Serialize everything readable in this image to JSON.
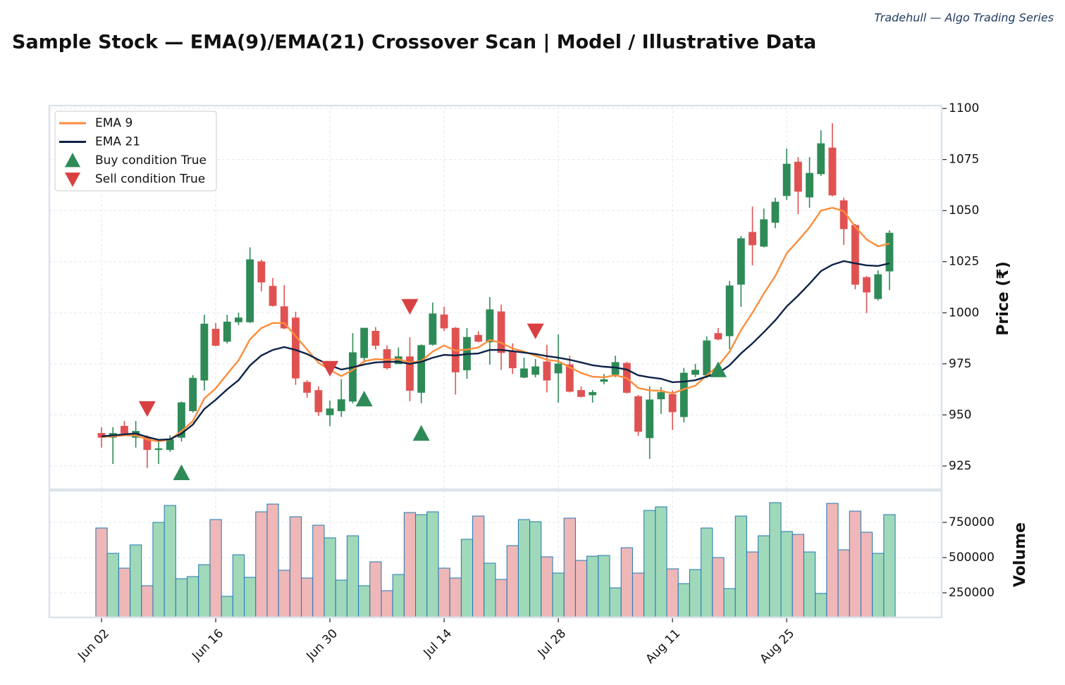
{
  "chart_data": [
    {
      "type": "candlestick",
      "title": "Sample Stock — EMA(9)/EMA(21) Crossover Scan  |  Model / Illustrative Data",
      "source": "Tradehull — Algo Trading Series",
      "ylabel": "Price (₹)",
      "xlim": [
        -4.57,
        73.57
      ],
      "xticks": [
        {
          "value": 0,
          "label": "Jun 02"
        },
        {
          "value": 10,
          "label": "Jun 16"
        },
        {
          "value": 20,
          "label": "Jun 30"
        },
        {
          "value": 30,
          "label": "Jul 14"
        },
        {
          "value": 40,
          "label": "Jul 28"
        },
        {
          "value": 50,
          "label": "Aug 11"
        },
        {
          "value": 60,
          "label": "Aug 25"
        }
      ],
      "ylim": [
        913.6,
        1101.4
      ],
      "yticks": [
        925,
        950,
        975,
        1000,
        1025,
        1050,
        1075,
        1100
      ],
      "grid": true,
      "up_color": "#2e8b57",
      "down_color": "#e05252",
      "open": [
        941,
        939,
        944.5,
        939,
        939,
        933,
        933,
        939,
        952,
        967,
        992,
        986,
        995.5,
        995.5,
        1025,
        1013,
        1003,
        997.5,
        966,
        962,
        950,
        952,
        956.7,
        978,
        991,
        982,
        975,
        978.5,
        961,
        984.5,
        999,
        992.5,
        972,
        989,
        985.7,
        1000.5,
        981,
        968.4,
        969.8,
        976,
        970.5,
        974.6,
        962,
        959.8,
        966.4,
        969.8,
        975.3,
        959,
        938.8,
        957.8,
        960,
        949.1,
        969.8,
        969.5,
        989.9,
        988.7,
        1013.9,
        1039.4,
        1032.5,
        1044.2,
        1057.3,
        1073.8,
        1056.6,
        1068,
        1080.7,
        1054.9,
        1042.8,
        1017.3,
        1006.9,
        1020.4
      ],
      "high": [
        944,
        944,
        947,
        947,
        940,
        937,
        940,
        956.5,
        969.5,
        999,
        995,
        999,
        1000,
        1032,
        1026,
        1017,
        1013.5,
        1000.5,
        967,
        964,
        957,
        967.5,
        990,
        992.5,
        993,
        984,
        983,
        988,
        984.5,
        1005,
        1003,
        993,
        992.5,
        991,
        1007.7,
        1004,
        985,
        978,
        977.4,
        984.3,
        989.4,
        979,
        964,
        962.2,
        970,
        979,
        976,
        959.8,
        964,
        963.6,
        962,
        973,
        975,
        988.4,
        992.5,
        1015.6,
        1037.6,
        1052,
        1051,
        1056.3,
        1080.4,
        1076.2,
        1076.2,
        1089.3,
        1092.8,
        1056.3,
        1043.5,
        1018,
        1020.8,
        1040.4
      ],
      "low": [
        934,
        926,
        941,
        934,
        924,
        926,
        932,
        937,
        951.2,
        962,
        983.6,
        985,
        994,
        995,
        1010.5,
        1003,
        992,
        964.7,
        958.5,
        949.5,
        944.5,
        949,
        955.7,
        975.5,
        982,
        972.2,
        975,
        956.7,
        955.7,
        984,
        991,
        960,
        967.7,
        985.5,
        974.6,
        972,
        970,
        968,
        968.4,
        961,
        956,
        961,
        958.5,
        956,
        965,
        968.5,
        960.5,
        939.8,
        928.5,
        950.5,
        942.6,
        946.4,
        968.5,
        968,
        986.5,
        982.2,
        1002.9,
        1023.2,
        1032,
        1041.4,
        1055.2,
        1048.3,
        1051.4,
        1067,
        1057,
        1033.2,
        1011.5,
        999.8,
        1006,
        1011.1
      ],
      "close": [
        939,
        941,
        941,
        942,
        933,
        933.5,
        938,
        956,
        968,
        994.5,
        984,
        995.5,
        997.5,
        1026,
        1015,
        1003.5,
        992.5,
        968,
        961,
        951.5,
        953,
        957.5,
        980.5,
        992.5,
        984,
        973,
        978.5,
        962,
        984,
        999.5,
        992.5,
        971,
        988,
        986,
        1001.5,
        980.5,
        973,
        972.6,
        973.6,
        967,
        975,
        961.5,
        959,
        961,
        967.3,
        975.7,
        961,
        941.9,
        957.4,
        961,
        951.5,
        970.5,
        971.9,
        986.3,
        987.1,
        1013.2,
        1036.3,
        1033.2,
        1045.6,
        1054.2,
        1072.8,
        1059.4,
        1068.3,
        1082.8,
        1057.6,
        1041.1,
        1013.9,
        1010.1,
        1018.7,
        1039
      ],
      "series": [
        {
          "name": "EMA 9",
          "color": "#fd8d3c",
          "values": [
            939.2,
            939.5,
            940,
            940,
            938,
            937,
            938,
            942,
            947,
            958,
            963,
            970,
            976.7,
            987,
            992.5,
            995,
            995,
            988.6,
            982,
            975.5,
            972,
            969,
            972,
            976.3,
            977.3,
            977,
            977.3,
            975.6,
            976.3,
            981,
            984,
            981.5,
            982,
            983,
            986.7,
            985.3,
            982.5,
            981,
            979,
            977,
            976.3,
            973.3,
            970.5,
            968.7,
            968.4,
            969.4,
            968,
            963.2,
            962,
            961.8,
            960.5,
            962.6,
            964.3,
            969.4,
            974,
            981,
            991.5,
            1000,
            1009.4,
            1018,
            1029.1,
            1035.3,
            1041.8,
            1050,
            1051.4,
            1049.7,
            1042.1,
            1035.9,
            1032.5,
            1033.9
          ]
        },
        {
          "name": "EMA 21",
          "color": "#0d2347",
          "values": [
            939.5,
            940,
            940.5,
            940.9,
            939.2,
            937.8,
            938.1,
            940.9,
            945.3,
            952.9,
            957.4,
            962.5,
            967,
            974.2,
            979.1,
            981.8,
            983.2,
            981.8,
            979.8,
            977,
            974.3,
            972.2,
            973.3,
            974.7,
            975.7,
            976,
            976,
            975,
            976,
            978,
            979.4,
            979.1,
            979.8,
            980.1,
            981.8,
            981.8,
            981.2,
            980.5,
            979.8,
            978.8,
            978,
            977,
            975.7,
            974.3,
            973.6,
            973.2,
            972.2,
            969.4,
            968.4,
            967.7,
            966,
            966.3,
            967,
            968.8,
            970.4,
            974.3,
            980.1,
            985,
            990.5,
            996.3,
            1003.1,
            1008.4,
            1014.2,
            1020.4,
            1023.5,
            1025.3,
            1024.2,
            1023.2,
            1022.9,
            1024.2
          ]
        }
      ],
      "markers": [
        {
          "name": "Buy condition True",
          "shape": "up",
          "color": "#2e8b57",
          "x": [
            7,
            23,
            28,
            54
          ],
          "values": [
            921.6,
            957.7,
            940.9,
            972
          ]
        },
        {
          "name": "Sell condition True",
          "shape": "down",
          "color": "#d94040",
          "x": [
            4,
            20,
            27,
            38
          ],
          "values": [
            953.2,
            972.9,
            1003.2,
            991.2
          ]
        }
      ],
      "legend": "upper left"
    },
    {
      "type": "bar",
      "ylabel": "Volume",
      "ylim": [
        75000,
        975000
      ],
      "yticks": [
        250000,
        500000,
        750000
      ],
      "grid": true,
      "up_color": "#a0d9b9",
      "down_color": "#efb7b7",
      "edge_color": "#1f77b4",
      "values": [
        710000,
        530000,
        425000,
        590000,
        300000,
        750000,
        870000,
        350000,
        365000,
        450000,
        770000,
        225000,
        520000,
        360000,
        825000,
        880000,
        410000,
        790000,
        355000,
        730000,
        640000,
        340000,
        655000,
        300000,
        470000,
        265000,
        380000,
        820000,
        805000,
        825000,
        425000,
        355000,
        630000,
        795000,
        460000,
        345000,
        585000,
        770000,
        755000,
        505000,
        390000,
        780000,
        480000,
        510000,
        515000,
        285000,
        570000,
        390000,
        835000,
        860000,
        420000,
        315000,
        415000,
        710000,
        500000,
        280000,
        795000,
        540000,
        655000,
        890000,
        685000,
        665000,
        540000,
        245000,
        885000,
        555000,
        830000,
        680000,
        530000,
        805000
      ]
    }
  ]
}
